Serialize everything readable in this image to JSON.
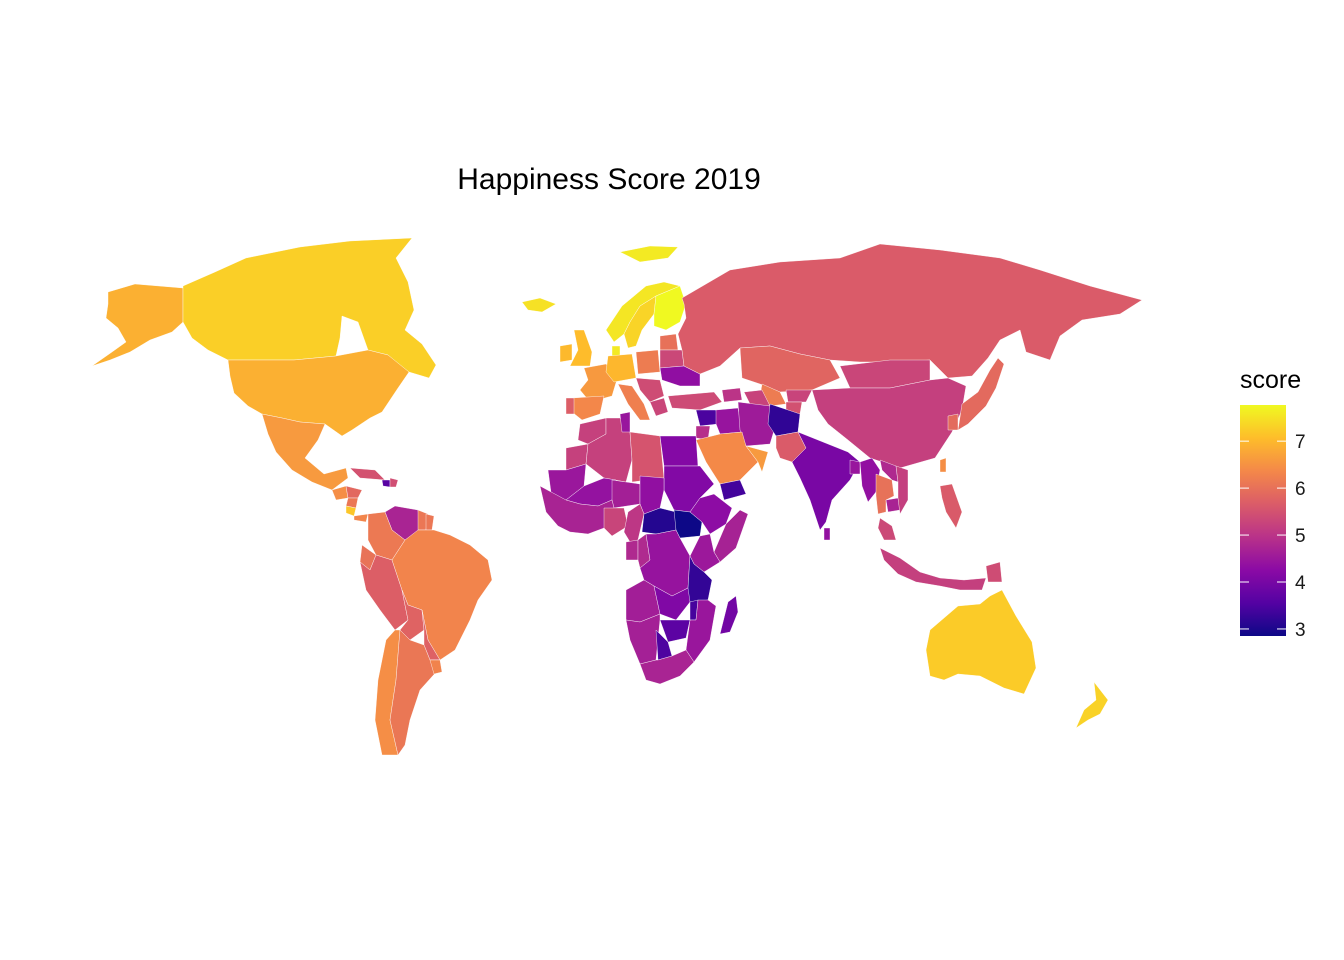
{
  "chart_data": {
    "type": "choropleth",
    "title": "Happiness Score 2019",
    "legend": {
      "title": "score",
      "placement": "right",
      "ticks": [
        3,
        4,
        5,
        6,
        7
      ],
      "range": [
        2.85,
        7.77
      ],
      "colormap": "plasma",
      "color_stops": [
        "#0d0887",
        "#5402a3",
        "#8b0aa5",
        "#b93289",
        "#db5c68",
        "#f48849",
        "#febd2a",
        "#f0f921"
      ]
    },
    "missing_color": "#ffffff",
    "regions": [
      {
        "name": "Canada",
        "score": 7.28
      },
      {
        "name": "Greenland",
        "score": 7.6
      },
      {
        "name": "United States",
        "score": 6.89
      },
      {
        "name": "Alaska",
        "score": 6.89
      },
      {
        "name": "Mexico",
        "score": 6.6
      },
      {
        "name": "Guatemala",
        "score": 6.44
      },
      {
        "name": "Honduras",
        "score": 5.86
      },
      {
        "name": "Nicaragua",
        "score": 6.1
      },
      {
        "name": "Costa Rica",
        "score": 7.17
      },
      {
        "name": "Panama",
        "score": 6.32
      },
      {
        "name": "Cuba",
        "score": 5.5
      },
      {
        "name": "Haiti",
        "score": 3.6
      },
      {
        "name": "Dominican Republic",
        "score": 5.43
      },
      {
        "name": "Venezuela",
        "score": 4.71
      },
      {
        "name": "Colombia",
        "score": 6.13
      },
      {
        "name": "Ecuador",
        "score": 6.03
      },
      {
        "name": "Peru",
        "score": 5.7
      },
      {
        "name": "Brazil",
        "score": 6.3
      },
      {
        "name": "Bolivia",
        "score": 5.78
      },
      {
        "name": "Paraguay",
        "score": 5.74
      },
      {
        "name": "Chile",
        "score": 6.44
      },
      {
        "name": "Argentina",
        "score": 6.09
      },
      {
        "name": "Uruguay",
        "score": 6.29
      },
      {
        "name": "Guyana",
        "score": 6.1
      },
      {
        "name": "Suriname",
        "score": 6.1
      },
      {
        "name": "Iceland",
        "score": 7.49
      },
      {
        "name": "Norway",
        "score": 7.55
      },
      {
        "name": "Sweden",
        "score": 7.34
      },
      {
        "name": "Finland",
        "score": 7.77
      },
      {
        "name": "Denmark",
        "score": 7.6
      },
      {
        "name": "United Kingdom",
        "score": 7.05
      },
      {
        "name": "Ireland",
        "score": 7.02
      },
      {
        "name": "France",
        "score": 6.59
      },
      {
        "name": "Spain",
        "score": 6.35
      },
      {
        "name": "Portugal",
        "score": 5.69
      },
      {
        "name": "Germany",
        "score": 6.99
      },
      {
        "name": "Poland",
        "score": 6.18
      },
      {
        "name": "Italy",
        "score": 6.22
      },
      {
        "name": "Balkans",
        "score": 5.4
      },
      {
        "name": "Greece",
        "score": 5.29
      },
      {
        "name": "Ukraine",
        "score": 4.33
      },
      {
        "name": "Belarus",
        "score": 5.32
      },
      {
        "name": "Baltics",
        "score": 6.0
      },
      {
        "name": "Russia",
        "score": 5.65
      },
      {
        "name": "Turkey",
        "score": 5.37
      },
      {
        "name": "Caucasus",
        "score": 5.0
      },
      {
        "name": "Kazakhstan",
        "score": 5.81
      },
      {
        "name": "Uzbekistan",
        "score": 6.17
      },
      {
        "name": "Turkmenistan",
        "score": 5.25
      },
      {
        "name": "Kyrgyzstan",
        "score": 5.26
      },
      {
        "name": "Tajikistan",
        "score": 5.47
      },
      {
        "name": "Mongolia",
        "score": 5.29
      },
      {
        "name": "China",
        "score": 5.19
      },
      {
        "name": "Japan",
        "score": 5.89
      },
      {
        "name": "South Korea",
        "score": 5.9
      },
      {
        "name": "Iran",
        "score": 4.55
      },
      {
        "name": "Iraq",
        "score": 4.44
      },
      {
        "name": "Syria",
        "score": 3.46
      },
      {
        "name": "Jordan",
        "score": 4.91
      },
      {
        "name": "Saudi Arabia",
        "score": 6.38
      },
      {
        "name": "Yemen",
        "score": 3.38
      },
      {
        "name": "Oman",
        "score": 6.6
      },
      {
        "name": "Afghanistan",
        "score": 3.2
      },
      {
        "name": "Pakistan",
        "score": 5.65
      },
      {
        "name": "India",
        "score": 4.02
      },
      {
        "name": "Nepal",
        "score": 4.91
      },
      {
        "name": "Bangladesh",
        "score": 4.46
      },
      {
        "name": "Myanmar",
        "score": 4.36
      },
      {
        "name": "Thailand",
        "score": 6.01
      },
      {
        "name": "Cambodia",
        "score": 4.7
      },
      {
        "name": "Vietnam",
        "score": 5.18
      },
      {
        "name": "Laos",
        "score": 4.8
      },
      {
        "name": "Malaysia",
        "score": 5.34
      },
      {
        "name": "Indonesia",
        "score": 5.19
      },
      {
        "name": "Philippines",
        "score": 5.63
      },
      {
        "name": "Papua New Guinea",
        "score": 5.4
      },
      {
        "name": "Sri Lanka",
        "score": 4.37
      },
      {
        "name": "Taiwan",
        "score": 6.45
      },
      {
        "name": "Australia",
        "score": 7.23
      },
      {
        "name": "New Zealand",
        "score": 7.31
      },
      {
        "name": "Morocco",
        "score": 5.21
      },
      {
        "name": "Algeria",
        "score": 5.21
      },
      {
        "name": "Tunisia",
        "score": 4.46
      },
      {
        "name": "Libya",
        "score": 5.53
      },
      {
        "name": "Egypt",
        "score": 4.17
      },
      {
        "name": "Sudan",
        "score": 4.14
      },
      {
        "name": "Western Sahara",
        "score": 5.21
      },
      {
        "name": "Mauritania",
        "score": 4.49
      },
      {
        "name": "Mali",
        "score": 4.39
      },
      {
        "name": "Niger",
        "score": 4.63
      },
      {
        "name": "Chad",
        "score": 4.35
      },
      {
        "name": "Nigeria",
        "score": 5.27
      },
      {
        "name": "West Africa Coast",
        "score": 4.7
      },
      {
        "name": "Central African Republic",
        "score": 3.08
      },
      {
        "name": "South Sudan",
        "score": 2.85
      },
      {
        "name": "Ethiopia",
        "score": 4.29
      },
      {
        "name": "Somalia",
        "score": 4.67
      },
      {
        "name": "Cameroon",
        "score": 5.04
      },
      {
        "name": "Gabon",
        "score": 4.8
      },
      {
        "name": "Republic of the Congo",
        "score": 4.81
      },
      {
        "name": "DR Congo",
        "score": 4.42
      },
      {
        "name": "Kenya",
        "score": 4.51
      },
      {
        "name": "Tanzania",
        "score": 3.23
      },
      {
        "name": "Angola",
        "score": 4.6
      },
      {
        "name": "Zambia",
        "score": 4.11
      },
      {
        "name": "Zimbabwe",
        "score": 3.66
      },
      {
        "name": "Mozambique",
        "score": 4.47
      },
      {
        "name": "Malawi",
        "score": 3.41
      },
      {
        "name": "Botswana",
        "score": 3.49
      },
      {
        "name": "Namibia",
        "score": 4.64
      },
      {
        "name": "South Africa",
        "score": 4.72
      },
      {
        "name": "Madagascar",
        "score": 3.93
      }
    ]
  }
}
